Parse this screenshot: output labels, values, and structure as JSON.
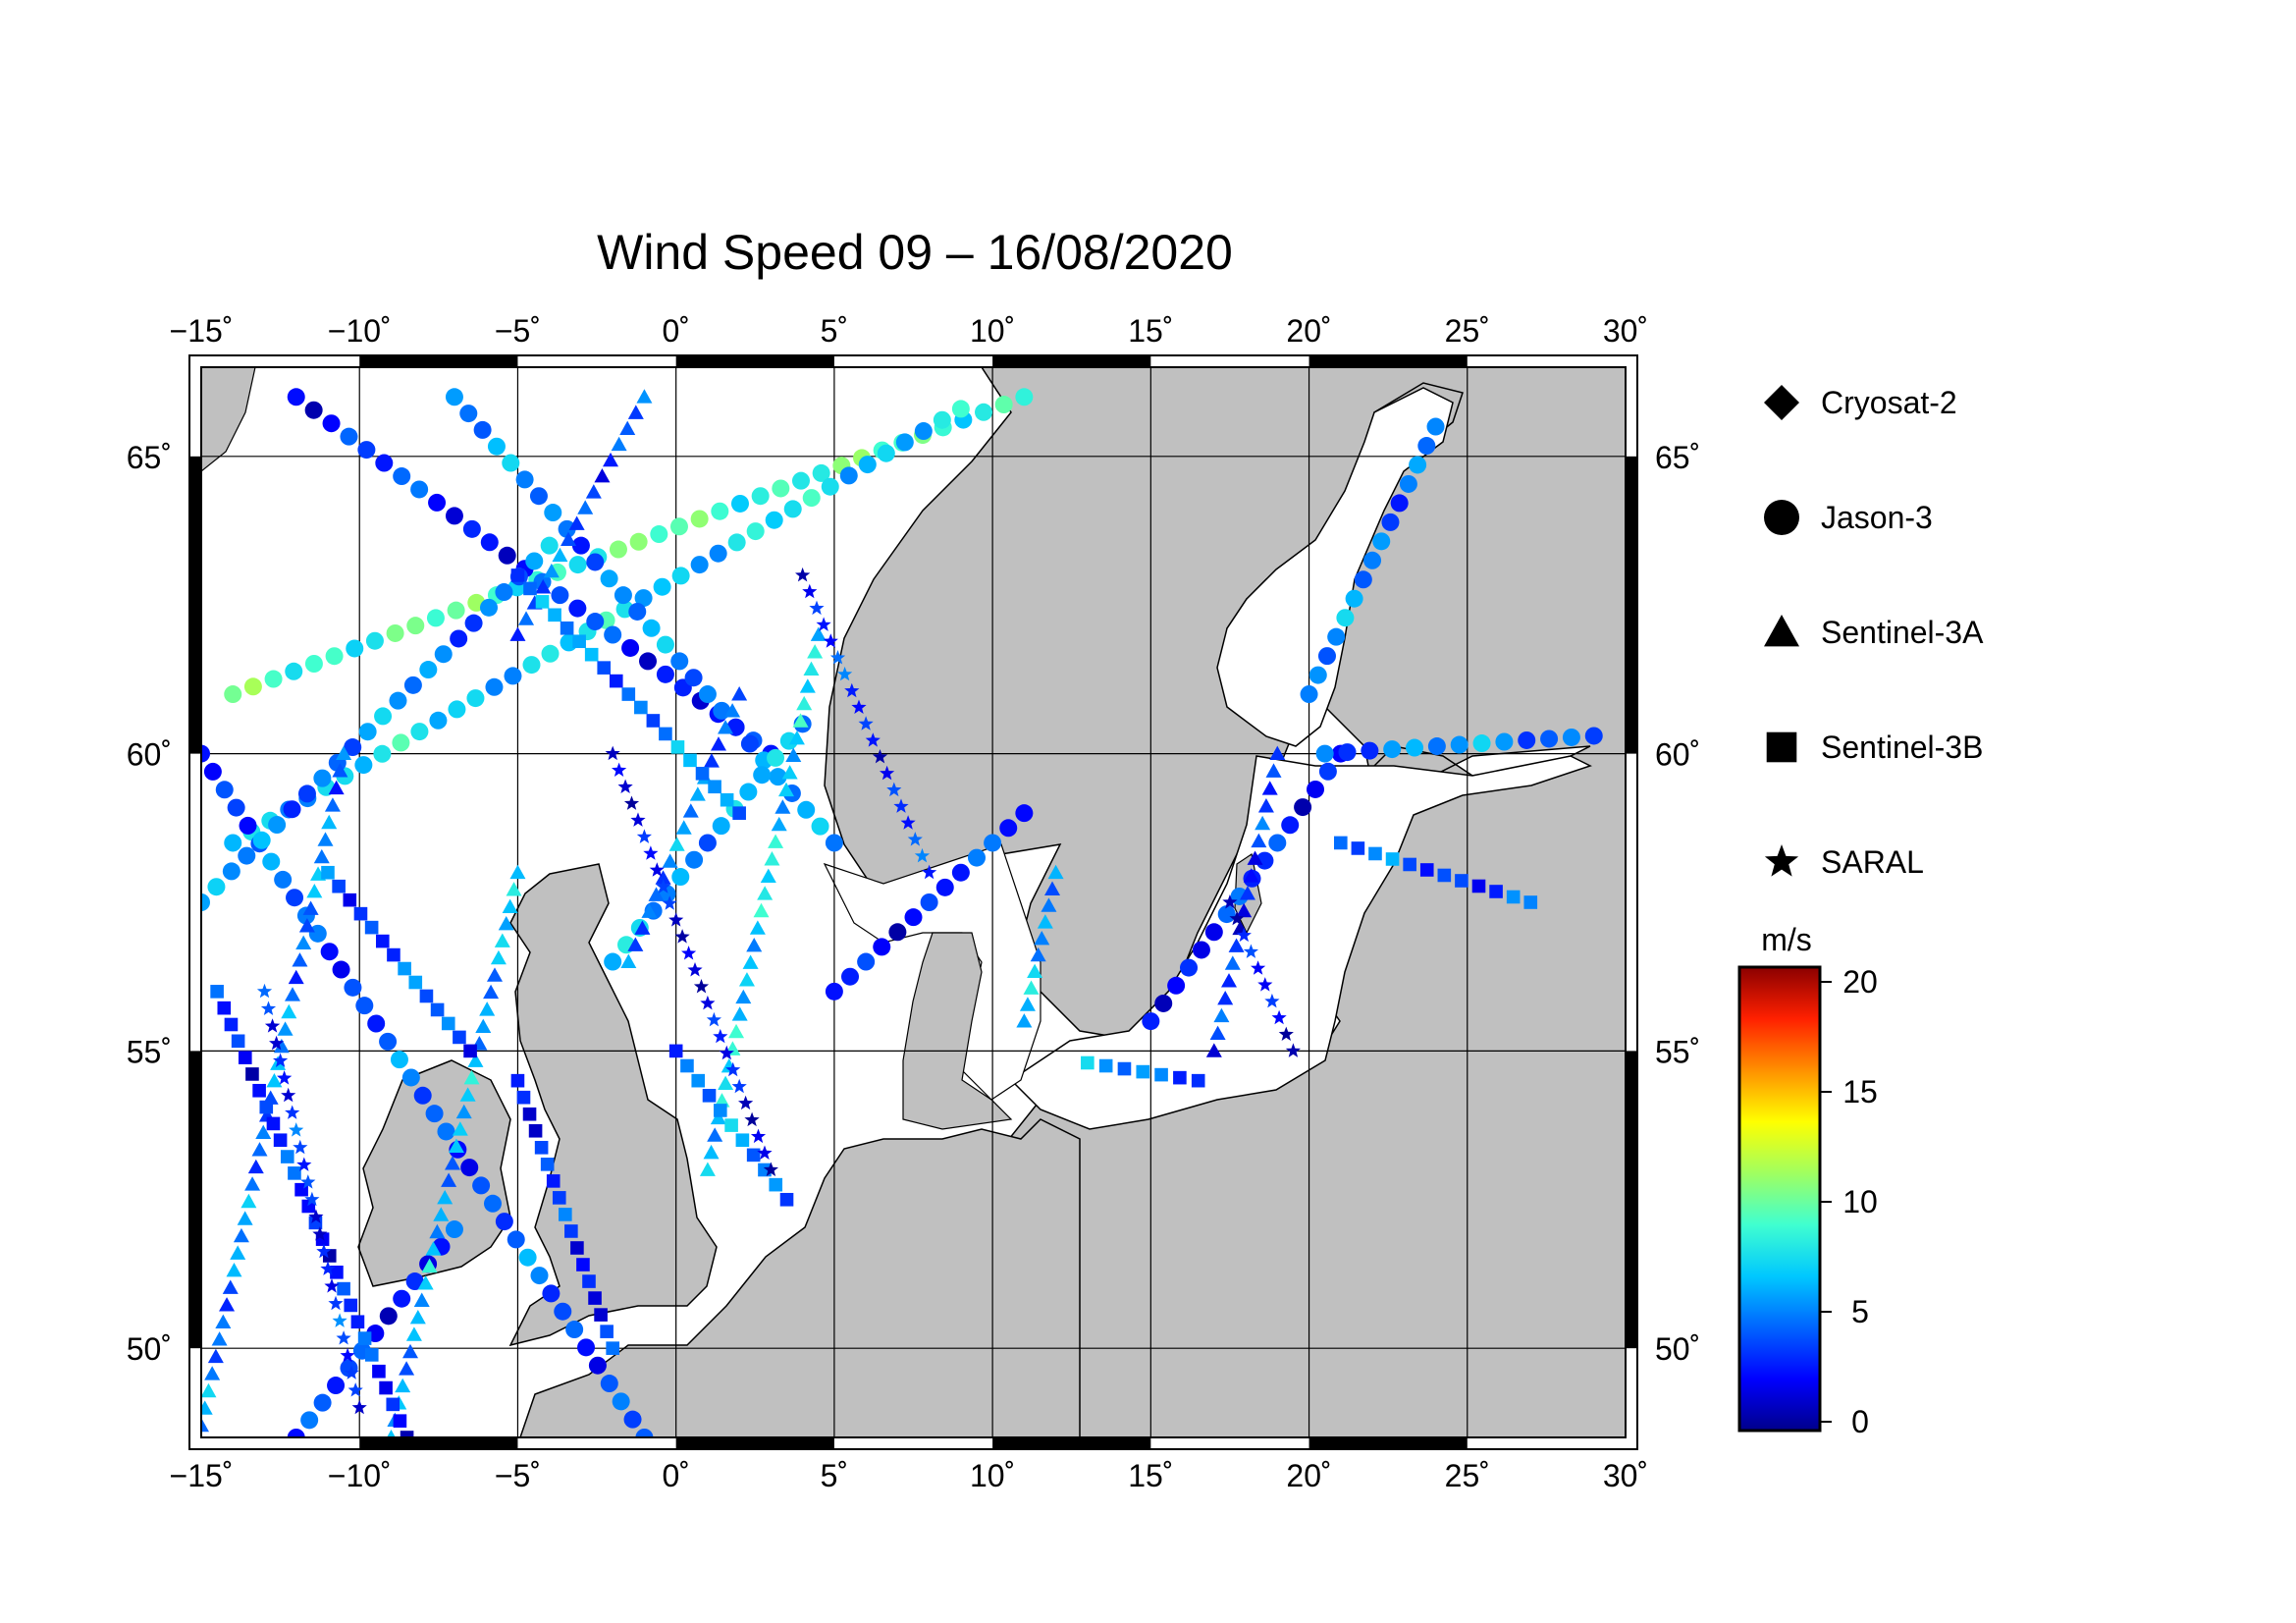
{
  "title": "Wind Speed 09 – 16/08/2020",
  "map": {
    "lon_range": [
      -15,
      30
    ],
    "lat_range": [
      48.5,
      66.5
    ],
    "lon_ticks": [
      -15,
      -10,
      -5,
      0,
      5,
      10,
      15,
      20,
      25,
      30
    ],
    "lon_labels": [
      "−15˚",
      "−10˚",
      "−5˚",
      "0˚",
      "5˚",
      "10˚",
      "15˚",
      "20˚",
      "25˚",
      "30˚"
    ],
    "lat_ticks": [
      50,
      55,
      60,
      65
    ],
    "lat_labels": [
      "50˚",
      "55˚",
      "60˚",
      "65˚"
    ],
    "land_color": "#c0c0c0",
    "sea_color": "#ffffff"
  },
  "legend": {
    "items": [
      {
        "label": "Cryosat-2",
        "icon": "diamond-icon"
      },
      {
        "label": "Jason-3",
        "icon": "circle-icon"
      },
      {
        "label": "Sentinel-3A",
        "icon": "triangle-icon"
      },
      {
        "label": "Sentinel-3B",
        "icon": "square-icon"
      },
      {
        "label": "SARAL",
        "icon": "star-icon"
      }
    ]
  },
  "colorbar": {
    "unit": "m/s",
    "min": 0,
    "max": 20,
    "ticks": [
      "0",
      "5",
      "10",
      "15",
      "20"
    ],
    "colors": [
      "#00008b",
      "#0000ff",
      "#0064ff",
      "#00c8ff",
      "#40ffd0",
      "#a0ff60",
      "#ffff00",
      "#ff9000",
      "#ff2000",
      "#8b0000"
    ]
  },
  "chart_data": {
    "type": "scatter",
    "title": "Wind Speed 09 – 16/08/2020",
    "x_unit": "longitude (deg)",
    "y_unit": "latitude (deg)",
    "color_unit": "m/s",
    "tracks": [
      {
        "name": "Jason-3",
        "marker": "circle",
        "from": [
          -14,
          61
        ],
        "to": [
          11,
          66
        ],
        "speed": 9
      },
      {
        "name": "Jason-3",
        "marker": "circle",
        "from": [
          -14,
          58.5
        ],
        "to": [
          9,
          65.8
        ],
        "speed": 7
      },
      {
        "name": "Jason-3",
        "marker": "circle",
        "from": [
          -15,
          60
        ],
        "to": [
          -1,
          48.5
        ],
        "speed": 4
      },
      {
        "name": "Jason-3",
        "marker": "circle",
        "from": [
          -12,
          66
        ],
        "to": [
          3,
          60
        ],
        "speed": 3
      },
      {
        "name": "Jason-3",
        "marker": "circle",
        "from": [
          -7,
          66
        ],
        "to": [
          5,
          58.5
        ],
        "speed": 5
      },
      {
        "name": "Jason-3",
        "marker": "circle",
        "from": [
          -15,
          57.5
        ],
        "to": [
          -4,
          63.5
        ],
        "speed": 5
      },
      {
        "name": "Jason-3",
        "marker": "circle",
        "from": [
          -2,
          56.5
        ],
        "to": [
          4,
          60.5
        ],
        "speed": 6
      },
      {
        "name": "Jason-3",
        "marker": "circle",
        "from": [
          5,
          56
        ],
        "to": [
          11,
          59
        ],
        "speed": 3
      },
      {
        "name": "Jason-3",
        "marker": "circle",
        "from": [
          15,
          55.5
        ],
        "to": [
          21,
          60
        ],
        "speed": 3
      },
      {
        "name": "Jason-3",
        "marker": "circle",
        "from": [
          20.5,
          60
        ],
        "to": [
          29,
          60.3
        ],
        "speed": 5
      },
      {
        "name": "Jason-3",
        "marker": "circle",
        "from": [
          20,
          61
        ],
        "to": [
          24,
          65.5
        ],
        "speed": 5
      },
      {
        "name": "Jason-3",
        "marker": "circle",
        "from": [
          -12,
          48.5
        ],
        "to": [
          -7,
          52
        ],
        "speed": 3
      },
      {
        "name": "Sentinel-3A",
        "marker": "triangle",
        "from": [
          -15,
          48.7
        ],
        "to": [
          -10.5,
          60
        ],
        "speed": 5
      },
      {
        "name": "Sentinel-3A",
        "marker": "triangle",
        "from": [
          -9,
          48.5
        ],
        "to": [
          -5,
          58
        ],
        "speed": 6
      },
      {
        "name": "Sentinel-3A",
        "marker": "triangle",
        "from": [
          -1.5,
          56.5
        ],
        "to": [
          2,
          61
        ],
        "speed": 5
      },
      {
        "name": "Sentinel-3A",
        "marker": "triangle",
        "from": [
          1,
          53
        ],
        "to": [
          4.5,
          62
        ],
        "speed": 7
      },
      {
        "name": "Sentinel-3A",
        "marker": "triangle",
        "from": [
          -5,
          62
        ],
        "to": [
          -1,
          66
        ],
        "speed": 4
      },
      {
        "name": "Sentinel-3A",
        "marker": "triangle",
        "from": [
          17,
          55
        ],
        "to": [
          19,
          60
        ],
        "speed": 3
      },
      {
        "name": "Sentinel-3A",
        "marker": "triangle",
        "from": [
          11,
          55.5
        ],
        "to": [
          12,
          58
        ],
        "speed": 6
      },
      {
        "name": "Sentinel-3B",
        "marker": "square",
        "from": [
          -14.5,
          56
        ],
        "to": [
          -8.5,
          48.5
        ],
        "speed": 3
      },
      {
        "name": "Sentinel-3B",
        "marker": "square",
        "from": [
          -11,
          58
        ],
        "to": [
          -6.5,
          55
        ],
        "speed": 4
      },
      {
        "name": "Sentinel-3B",
        "marker": "square",
        "from": [
          -5,
          54.5
        ],
        "to": [
          -2,
          50
        ],
        "speed": 3
      },
      {
        "name": "Sentinel-3B",
        "marker": "square",
        "from": [
          0,
          55
        ],
        "to": [
          3.5,
          52.5
        ],
        "speed": 5
      },
      {
        "name": "Sentinel-3B",
        "marker": "square",
        "from": [
          -5,
          63
        ],
        "to": [
          2,
          59
        ],
        "speed": 5
      },
      {
        "name": "Sentinel-3B",
        "marker": "square",
        "from": [
          21,
          58.5
        ],
        "to": [
          27,
          57.5
        ],
        "speed": 4
      },
      {
        "name": "Sentinel-3B",
        "marker": "square",
        "from": [
          13,
          54.8
        ],
        "to": [
          16.5,
          54.5
        ],
        "speed": 5
      },
      {
        "name": "SARAL",
        "marker": "star",
        "from": [
          -13,
          56
        ],
        "to": [
          -10,
          49
        ],
        "speed": 3
      },
      {
        "name": "SARAL",
        "marker": "star",
        "from": [
          -2,
          60
        ],
        "to": [
          3,
          53
        ],
        "speed": 2
      },
      {
        "name": "SARAL",
        "marker": "star",
        "from": [
          4,
          63
        ],
        "to": [
          8,
          58
        ],
        "speed": 3
      },
      {
        "name": "SARAL",
        "marker": "star",
        "from": [
          17.5,
          57.5
        ],
        "to": [
          19.5,
          55
        ],
        "speed": 2
      }
    ]
  }
}
